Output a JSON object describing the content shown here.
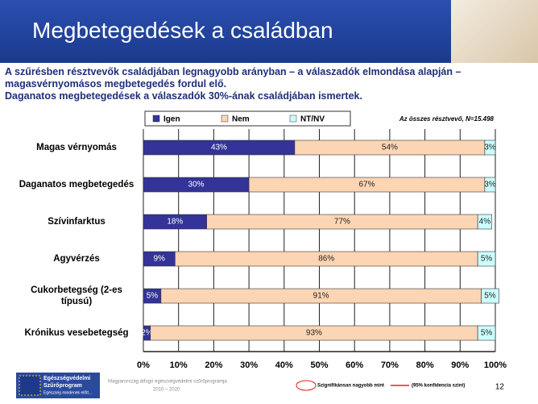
{
  "header": {
    "title": "Megbetegedések a családban"
  },
  "intro": [
    "A szűrésben résztvevők családjában legnagyobb arányban – a válaszadók elmondása alapján – magasvérnyomásos megbetegedés fordul elő.",
    "Daganatos megbetegedések a válaszadók 30%-ának családjában ismertek."
  ],
  "chart_data": {
    "type": "bar",
    "orientation": "horizontal",
    "stacked": true,
    "note": "Az összes résztvevő, N=15.498",
    "categories": [
      "Magas vérnyomás",
      "Daganatos megbetegedés",
      "Szívinfarktus",
      "Agyvérzés",
      "Cukorbetegség (2-es típusú)",
      "Krónikus vesebetegség"
    ],
    "series": [
      {
        "name": "Igen",
        "color": "#333399",
        "values": [
          43,
          30,
          18,
          9,
          5,
          2
        ],
        "value_labels": [
          "43%",
          "30%",
          "18%",
          "9%",
          "5%",
          "2%"
        ]
      },
      {
        "name": "Nem",
        "color": "#fcd5b4",
        "values": [
          54,
          67,
          77,
          86,
          91,
          93
        ],
        "value_labels": [
          "54%",
          "67%",
          "77%",
          "86%",
          "91%",
          "93%"
        ]
      },
      {
        "name": "NT/NV",
        "color": "#ccffff",
        "values": [
          3,
          3,
          4,
          5,
          5,
          5
        ],
        "value_labels": [
          "3%",
          "3%",
          "4%",
          "5%",
          "5%",
          "5%"
        ]
      }
    ],
    "xlim": [
      0,
      100
    ],
    "xticks": [
      {
        "value": 0,
        "label": "0%"
      },
      {
        "value": 10,
        "label": "10%"
      },
      {
        "value": 20,
        "label": "20%"
      },
      {
        "value": 30,
        "label": "30%"
      },
      {
        "value": 40,
        "label": "40%"
      },
      {
        "value": 50,
        "label": "50%"
      },
      {
        "value": 60,
        "label": "60%"
      },
      {
        "value": 70,
        "label": "70%"
      },
      {
        "value": 80,
        "label": "80%"
      },
      {
        "value": 90,
        "label": "90%"
      },
      {
        "value": 100,
        "label": "100%"
      }
    ],
    "grid": true
  },
  "footer": {
    "logo": [
      "Egészségvédelmi",
      "Szűrőprogram",
      "Egészség mindenek előtt..."
    ],
    "program": [
      "Magyarország átfogó egészségvédelmi szűrőprogramja",
      "2010 – 2020"
    ],
    "legend_circle": "Szignifikánsan nagyobb mint",
    "legend_line": "(95% konfidencia szint)",
    "page": "12"
  }
}
